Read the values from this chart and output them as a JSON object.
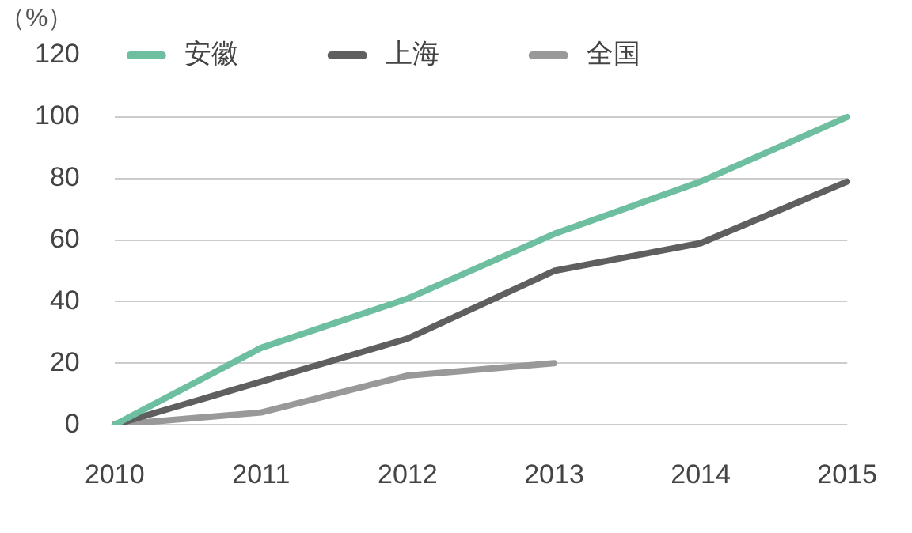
{
  "chart_data": {
    "type": "line",
    "ylabel": "（%）",
    "categories": [
      "2010",
      "2011",
      "2012",
      "2013",
      "2014",
      "2015"
    ],
    "series": [
      {
        "name": "安徽",
        "color": "#6dbf9f",
        "values": [
          0,
          25,
          41,
          62,
          79,
          100
        ]
      },
      {
        "name": "上海",
        "color": "#5f5f5f",
        "values": [
          0,
          14,
          28,
          50,
          59,
          79
        ]
      },
      {
        "name": "全国",
        "color": "#999999",
        "values": [
          0,
          4,
          16,
          20,
          null,
          null
        ]
      }
    ],
    "ylim": [
      0,
      120
    ],
    "yticks": [
      0,
      20,
      40,
      60,
      80,
      100,
      120
    ],
    "grid": "y",
    "legend": "top",
    "marker": "none",
    "line_style": "solid"
  }
}
